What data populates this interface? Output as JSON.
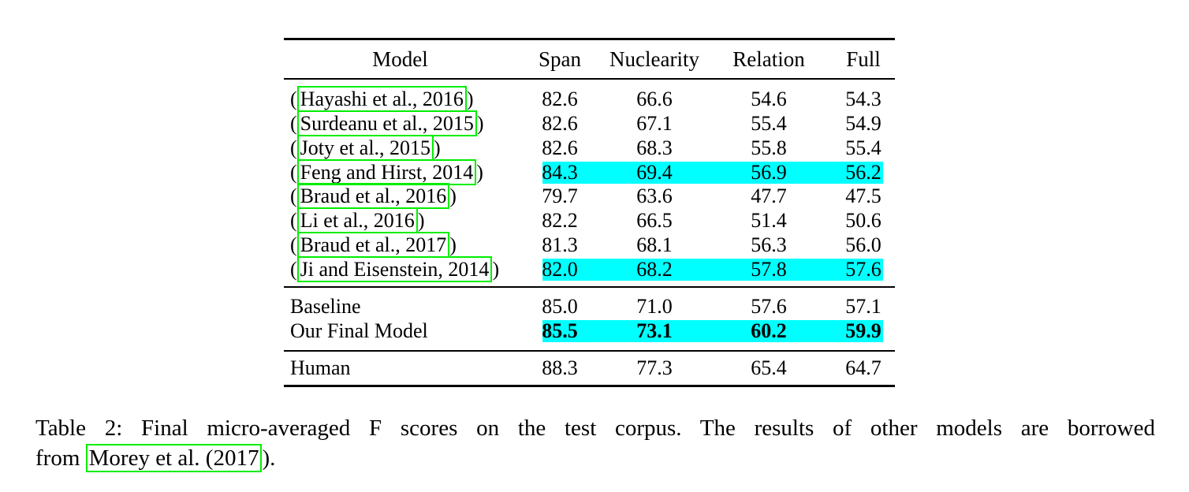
{
  "colors": {
    "highlight": "#00ffff",
    "annotation_box": "#00ee00",
    "text": "#000000",
    "background": "#ffffff"
  },
  "table": {
    "headers": {
      "model": "Model",
      "span": "Span",
      "nuclearity": "Nuclearity",
      "relation": "Relation",
      "full": "Full"
    },
    "groups": [
      {
        "rows": [
          {
            "pre": "(",
            "cite": "Hayashi et al., 2016",
            "post": ")",
            "values": [
              "82.6",
              "66.6",
              "54.6",
              "54.3"
            ],
            "highlight": false,
            "bold": false
          },
          {
            "pre": "(",
            "cite": "Surdeanu et al., 2015",
            "post": ")",
            "values": [
              "82.6",
              "67.1",
              "55.4",
              "54.9"
            ],
            "highlight": false,
            "bold": false
          },
          {
            "pre": "(",
            "cite": "Joty et al., 2015",
            "post": ")",
            "values": [
              "82.6",
              "68.3",
              "55.8",
              "55.4"
            ],
            "highlight": false,
            "bold": false
          },
          {
            "pre": "(",
            "cite": "Feng and Hirst, 2014",
            "post": ")",
            "values": [
              "84.3",
              "69.4",
              "56.9",
              "56.2"
            ],
            "highlight": true,
            "bold": false
          },
          {
            "pre": "(",
            "cite": "Braud et al., 2016",
            "post": ")",
            "values": [
              "79.7",
              "63.6",
              "47.7",
              "47.5"
            ],
            "highlight": false,
            "bold": false
          },
          {
            "pre": "(",
            "cite": "Li et al., 2016",
            "post": ")",
            "values": [
              "82.2",
              "66.5",
              "51.4",
              "50.6"
            ],
            "highlight": false,
            "bold": false
          },
          {
            "pre": "(",
            "cite": "Braud et al., 2017",
            "post": ")",
            "values": [
              "81.3",
              "68.1",
              "56.3",
              "56.0"
            ],
            "highlight": false,
            "bold": false
          },
          {
            "pre": "(",
            "cite": "Ji and Eisenstein, 2014",
            "post": ")",
            "values": [
              "82.0",
              "68.2",
              "57.8",
              "57.6"
            ],
            "highlight": true,
            "bold": false
          }
        ]
      },
      {
        "rows": [
          {
            "label": "Baseline",
            "values": [
              "85.0",
              "71.0",
              "57.6",
              "57.1"
            ],
            "highlight": false,
            "bold": false
          },
          {
            "label": "Our Final Model",
            "values": [
              "85.5",
              "73.1",
              "60.2",
              "59.9"
            ],
            "highlight": true,
            "bold": true
          }
        ]
      },
      {
        "rows": [
          {
            "label": "Human",
            "values": [
              "88.3",
              "77.3",
              "65.4",
              "64.7"
            ],
            "highlight": false,
            "bold": false
          }
        ]
      }
    ]
  },
  "caption": {
    "line1": "Table 2: Final micro-averaged F scores on the test corpus. The results of other models are borrowed",
    "line2_pre": "from ",
    "line2_cite": "Morey et al. (2017",
    "line2_post": ")."
  }
}
